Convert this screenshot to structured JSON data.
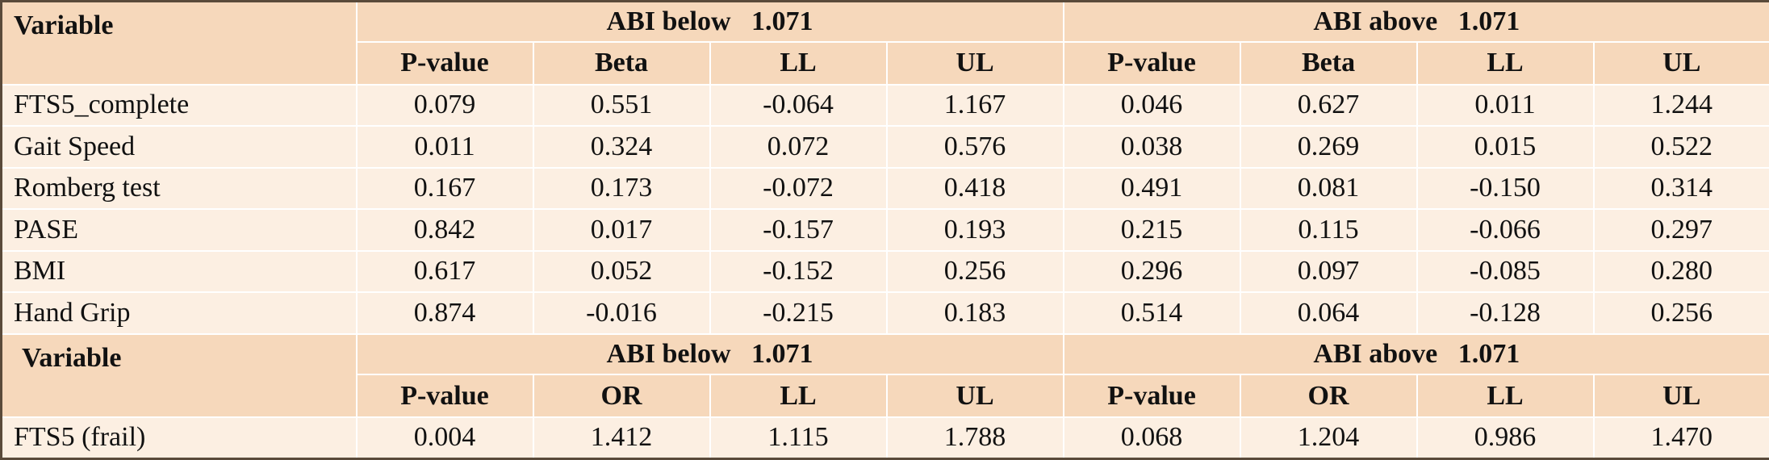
{
  "sections": [
    {
      "variable_header": "Variable",
      "group_left": "ABI below   1.071",
      "group_right": "ABI above   1.071",
      "columns": [
        "P-value",
        "Beta",
        "LL",
        "UL",
        "P-value",
        "Beta",
        "LL",
        "UL"
      ],
      "rows": [
        {
          "label": "FTS5_complete",
          "values": [
            "0.079",
            "0.551",
            "-0.064",
            "1.167",
            "0.046",
            "0.627",
            "0.011",
            "1.244"
          ]
        },
        {
          "label": "Gait Speed",
          "values": [
            "0.011",
            "0.324",
            "0.072",
            "0.576",
            "0.038",
            "0.269",
            "0.015",
            "0.522"
          ]
        },
        {
          "label": "Romberg test",
          "values": [
            "0.167",
            "0.173",
            "-0.072",
            "0.418",
            "0.491",
            "0.081",
            "-0.150",
            "0.314"
          ]
        },
        {
          "label": "PASE",
          "values": [
            "0.842",
            "0.017",
            "-0.157",
            "0.193",
            "0.215",
            "0.115",
            "-0.066",
            "0.297"
          ]
        },
        {
          "label": "BMI",
          "values": [
            "0.617",
            "0.052",
            "-0.152",
            "0.256",
            "0.296",
            "0.097",
            "-0.085",
            "0.280"
          ]
        },
        {
          "label": "Hand Grip",
          "values": [
            "0.874",
            "-0.016",
            "-0.215",
            "0.183",
            "0.514",
            "0.064",
            "-0.128",
            "0.256"
          ]
        }
      ]
    },
    {
      "variable_header": "Variable",
      "group_left": "ABI below   1.071",
      "group_right": "ABI above   1.071",
      "columns": [
        "P-value",
        "OR",
        "LL",
        "UL",
        "P-value",
        "OR",
        "LL",
        "UL"
      ],
      "rows": [
        {
          "label": "FTS5 (frail)",
          "values": [
            "0.004",
            "1.412",
            "1.115",
            "1.788",
            "0.068",
            "1.204",
            "0.986",
            "1.470"
          ]
        }
      ]
    }
  ]
}
